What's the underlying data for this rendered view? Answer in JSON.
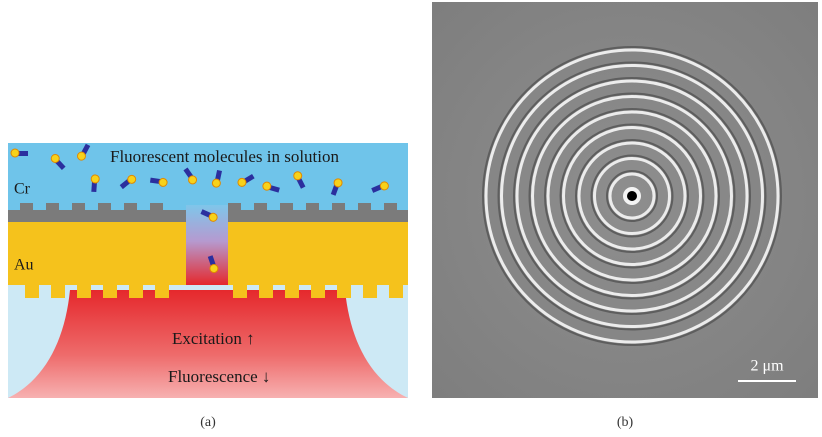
{
  "panel_a": {
    "caption": "(a)",
    "solution_label": "Fluorescent molecules in solution",
    "cr_label": "Cr",
    "au_label": "Au",
    "excitation_label": "Excitation ↑",
    "fluorescence_label": "Fluorescence ↓"
  },
  "panel_b": {
    "caption": "(b)",
    "scale_bar_label": "2 μm"
  }
}
